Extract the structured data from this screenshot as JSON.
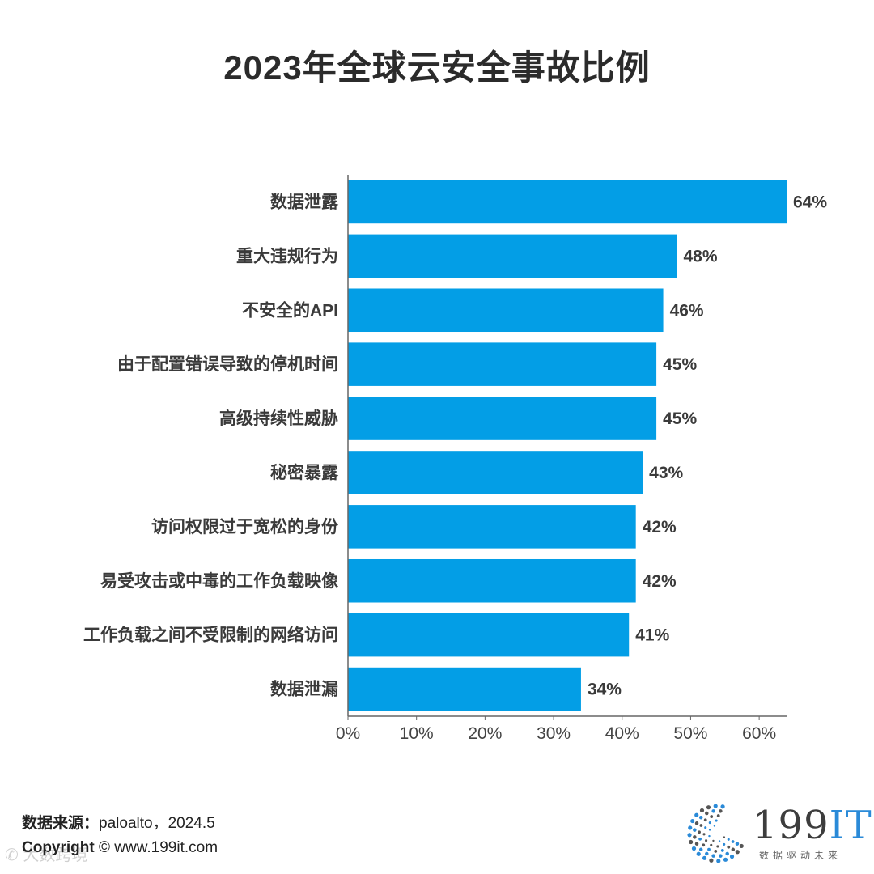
{
  "chart_data": {
    "type": "bar",
    "orientation": "horizontal",
    "title": "2023年全球云安全事故比例",
    "categories": [
      "数据泄露",
      "重大违规行为",
      "不安全的API",
      "由于配置错误导致的停机时间",
      "高级持续性威胁",
      "秘密暴露",
      "访问权限过于宽松的身份",
      "易受攻击或中毒的工作负载映像",
      "工作负载之间不受限制的网络访问",
      "数据泄漏"
    ],
    "values": [
      64,
      48,
      46,
      45,
      45,
      43,
      42,
      42,
      41,
      34
    ],
    "value_labels": [
      "64%",
      "48%",
      "46%",
      "45%",
      "45%",
      "43%",
      "42%",
      "42%",
      "41%",
      "34%"
    ],
    "xlim": [
      0,
      64
    ],
    "xticks": [
      0,
      10,
      20,
      30,
      40,
      50,
      60
    ],
    "xtick_labels": [
      "0%",
      "10%",
      "20%",
      "30%",
      "40%",
      "50%",
      "60%"
    ],
    "bar_color": "#039ee6",
    "grid": false,
    "legend": "none"
  },
  "footer": {
    "source_label": "数据来源：",
    "source_value": "paloalto，2024.5",
    "copyright_label": "Copyright",
    "copyright_symbol": "©",
    "copyright_url": "www.199it.com",
    "watermark": "大数跨境"
  },
  "logo": {
    "main": "199",
    "accent": "IT",
    "subtitle": "数据驱动未来",
    "dot_color": "#2a8ad8"
  }
}
